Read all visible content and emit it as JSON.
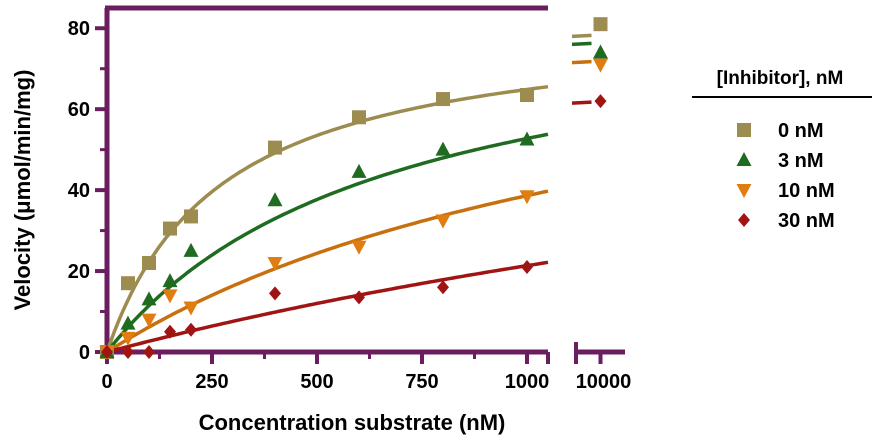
{
  "chart_data": {
    "type": "scatter",
    "title": "",
    "xlabel": "Concentration substrate (nM)",
    "ylabel": "Velocity (μmol/min/mg)",
    "xlim_main": [
      0,
      1050
    ],
    "xlim_break": [
      9900,
      10100
    ],
    "ylim": [
      0,
      85
    ],
    "x_ticks_main": [
      0,
      250,
      500,
      750,
      1000
    ],
    "x_ticks_break": [
      10000
    ],
    "y_ticks": [
      0,
      20,
      40,
      60,
      80
    ],
    "axis_color": "#6a1e5e",
    "grid": false,
    "legend": {
      "title": "[Inhibitor], nM",
      "placement": "right"
    },
    "series": [
      {
        "name": "0 nM",
        "marker": "square",
        "color": "#9c8c50",
        "line_color": "#9c8c50",
        "x": [
          0,
          50,
          100,
          150,
          200,
          400,
          600,
          800,
          1000,
          10000
        ],
        "y": [
          0,
          17,
          22,
          30.5,
          33.5,
          50.5,
          58,
          62.5,
          63.5,
          81
        ],
        "fit_vmax": 82.4,
        "fit_km": 270,
        "fit_x_max": 1050,
        "fit_break_y": 78
      },
      {
        "name": "3 nM",
        "marker": "triangle-up",
        "color": "#1f6b1f",
        "line_color": "#1f6b1f",
        "x": [
          0,
          50,
          100,
          150,
          200,
          400,
          600,
          800,
          1000,
          10000
        ],
        "y": [
          0,
          7,
          13,
          17.5,
          25,
          37.5,
          44.5,
          50,
          52.5,
          74
        ],
        "fit_vmax": 88,
        "fit_km": 668,
        "fit_x_max": 1050,
        "fit_break_y": 76
      },
      {
        "name": "10 nM",
        "marker": "triangle-down",
        "color": "#e07c10",
        "line_color": "#c8700e",
        "x": [
          0,
          50,
          100,
          150,
          200,
          400,
          600,
          800,
          1000,
          10000
        ],
        "y": [
          0,
          3.5,
          8,
          14,
          11,
          22,
          26,
          32.5,
          38.5,
          71
        ],
        "fit_vmax": 93,
        "fit_km": 1407,
        "fit_x_max": 1050,
        "fit_break_y": 71.5
      },
      {
        "name": "30 nM",
        "marker": "diamond",
        "color": "#a01414",
        "line_color": "#a01414",
        "x": [
          0,
          50,
          100,
          150,
          200,
          400,
          600,
          800,
          1000,
          10000
        ],
        "y": [
          0,
          0,
          0,
          5,
          5.5,
          14.5,
          13.5,
          16,
          21,
          62
        ],
        "fit_vmax": 96,
        "fit_km": 3500,
        "fit_x_max": 1050,
        "fit_break_y": 61.5
      }
    ]
  }
}
